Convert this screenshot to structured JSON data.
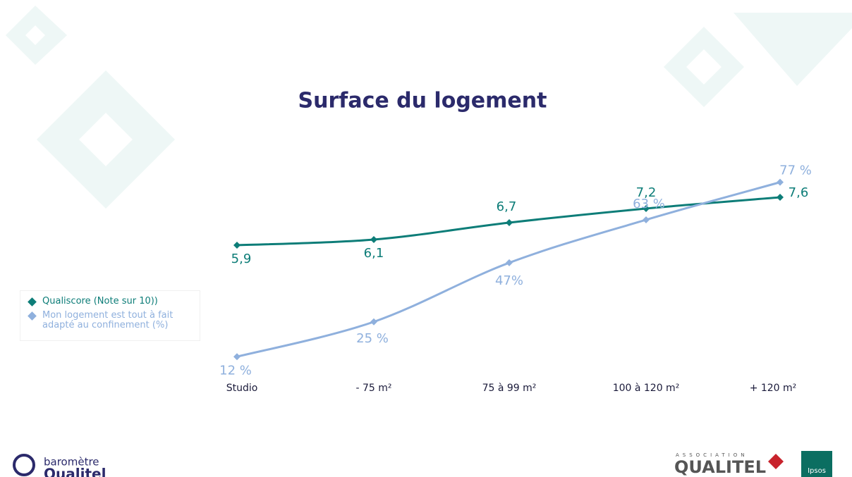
{
  "chart_data": {
    "type": "line",
    "title": "Surface du logement",
    "categories": [
      "Studio",
      "- 75 m²",
      "75 à 99 m²",
      "100 à 120 m²",
      "+ 120 m²"
    ],
    "series": [
      {
        "name": "Qualiscore (Note sur 10))",
        "color": "#0d7d78",
        "values": [
          5.9,
          6.1,
          6.7,
          7.2,
          7.6
        ],
        "value_labels": [
          "5,9",
          "6,1",
          "6,7",
          "7,2",
          "7,6"
        ]
      },
      {
        "name": "Mon logement est tout à fait adapté au confinement (%)",
        "color": "#8fb0dd",
        "axis": "y2",
        "values": [
          12,
          25,
          47,
          63,
          77
        ],
        "value_labels": [
          "12 %",
          "25 %",
          "47%",
          "63 %",
          "77 %"
        ]
      }
    ],
    "ylim": [
      0,
      9
    ],
    "y2lim": [
      0,
      100
    ],
    "legend": "left"
  },
  "footer": {
    "left_logo_top": "baromètre",
    "left_logo_bottom": "Qualitel",
    "right_logo_top": "ASSOCIATION",
    "right_logo_main": "QUALITEL",
    "partner": "Ipsos"
  }
}
